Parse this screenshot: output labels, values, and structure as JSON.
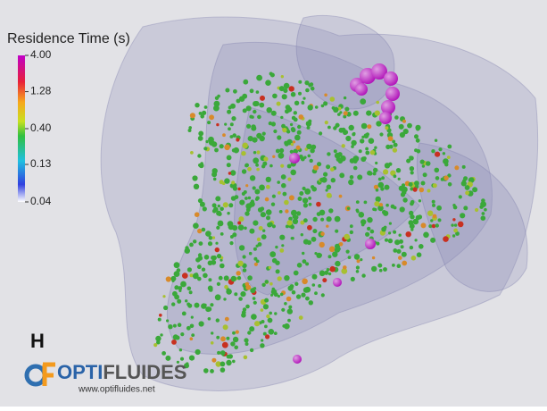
{
  "colorbar": {
    "title": "Residence Time (s)",
    "log": true,
    "lim": [
      0.04,
      4
    ],
    "ticks": [
      {
        "value": 4,
        "label": "4.00"
      },
      1.28,
      {
        "value": 0.4,
        "label": "0.40"
      },
      0.13,
      0.04
    ]
  },
  "panel_label": "H",
  "logo": {
    "brand_a": "OPTI",
    "brand_b": "FLUIDES",
    "url": "www.optifluides.net"
  }
}
